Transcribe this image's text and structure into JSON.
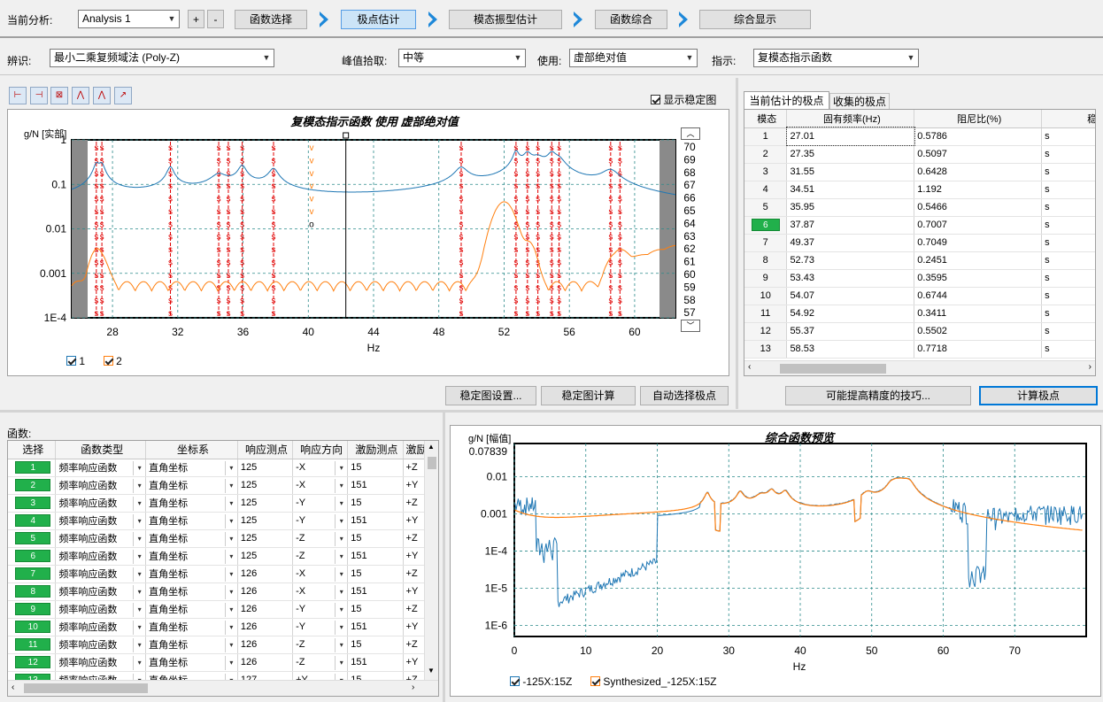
{
  "top": {
    "analysis_label": "当前分析:",
    "analysis_value": "Analysis 1",
    "plus": "+",
    "minus": "-",
    "steps": [
      "函数选择",
      "极点估计",
      "模态振型估计",
      "函数综合",
      "综合显示"
    ]
  },
  "options": {
    "ident_label": "辨识:",
    "ident_value": "最小二乘复频域法 (Poly-Z)",
    "peak_label": "峰值拾取:",
    "peak_value": "中等",
    "use_label": "使用:",
    "use_value": "虚部绝对值",
    "indicator_label": "指示:",
    "indicator_value": "复模态指示函数"
  },
  "stab": {
    "show_label": "显示稳定图",
    "title": "复模态指示函数 使用 虚部绝对值",
    "ylabel": "g/N [实部]",
    "xlabel": "Hz",
    "yticks": [
      "1",
      "0.1",
      "0.01",
      "0.001",
      "1E-4"
    ],
    "xticks": [
      "28",
      "32",
      "36",
      "40",
      "44",
      "48",
      "52",
      "56",
      "60"
    ],
    "orders": [
      "70",
      "69",
      "68",
      "67",
      "66",
      "65",
      "64",
      "63",
      "62",
      "61",
      "60",
      "59",
      "58",
      "57"
    ],
    "legend": [
      "1",
      "2"
    ],
    "buttons": [
      "稳定图设置...",
      "稳定图计算",
      "自动选择极点"
    ]
  },
  "poles": {
    "tabs": [
      "当前估计的极点",
      "收集的极点"
    ],
    "headers": [
      "模态",
      "固有频率(Hz)",
      "阻尼比(%)",
      "稳定类型"
    ],
    "rows": [
      [
        "1",
        "27.01",
        "0.5786",
        "s"
      ],
      [
        "2",
        "27.35",
        "0.5097",
        "s"
      ],
      [
        "3",
        "31.55",
        "0.6428",
        "s"
      ],
      [
        "4",
        "34.51",
        "1.192",
        "s"
      ],
      [
        "5",
        "35.95",
        "0.5466",
        "s"
      ],
      [
        "6",
        "37.87",
        "0.7007",
        "s"
      ],
      [
        "7",
        "49.37",
        "0.7049",
        "s"
      ],
      [
        "8",
        "52.73",
        "0.2451",
        "s"
      ],
      [
        "9",
        "53.43",
        "0.3595",
        "s"
      ],
      [
        "10",
        "54.07",
        "0.6744",
        "s"
      ],
      [
        "11",
        "54.92",
        "0.3411",
        "s"
      ],
      [
        "12",
        "55.37",
        "0.5502",
        "s"
      ],
      [
        "13",
        "58.53",
        "0.7718",
        "s"
      ]
    ],
    "tip_button": "可能提高精度的技巧...",
    "calc_button": "计算极点"
  },
  "functions": {
    "label": "函数:",
    "headers": [
      "选择",
      "函数类型",
      "坐标系",
      "响应测点",
      "响应方向",
      "激励测点",
      "激励方"
    ],
    "rows": [
      [
        "1",
        "频率响应函数",
        "直角坐标",
        "125",
        "-X",
        "15",
        "+Z"
      ],
      [
        "2",
        "频率响应函数",
        "直角坐标",
        "125",
        "-X",
        "151",
        "+Y"
      ],
      [
        "3",
        "频率响应函数",
        "直角坐标",
        "125",
        "-Y",
        "15",
        "+Z"
      ],
      [
        "4",
        "频率响应函数",
        "直角坐标",
        "125",
        "-Y",
        "151",
        "+Y"
      ],
      [
        "5",
        "频率响应函数",
        "直角坐标",
        "125",
        "-Z",
        "15",
        "+Z"
      ],
      [
        "6",
        "频率响应函数",
        "直角坐标",
        "125",
        "-Z",
        "151",
        "+Y"
      ],
      [
        "7",
        "频率响应函数",
        "直角坐标",
        "126",
        "-X",
        "15",
        "+Z"
      ],
      [
        "8",
        "频率响应函数",
        "直角坐标",
        "126",
        "-X",
        "151",
        "+Y"
      ],
      [
        "9",
        "频率响应函数",
        "直角坐标",
        "126",
        "-Y",
        "15",
        "+Z"
      ],
      [
        "10",
        "频率响应函数",
        "直角坐标",
        "126",
        "-Y",
        "151",
        "+Y"
      ],
      [
        "11",
        "频率响应函数",
        "直角坐标",
        "126",
        "-Z",
        "15",
        "+Z"
      ],
      [
        "12",
        "频率响应函数",
        "直角坐标",
        "126",
        "-Z",
        "151",
        "+Y"
      ],
      [
        "13",
        "频率响应函数",
        "直角坐标",
        "127",
        "+Y",
        "15",
        "+Z"
      ]
    ]
  },
  "synth": {
    "title": "综合函数预览",
    "ylabel": "g/N [幅值]",
    "ytop": "0.07839",
    "yticks": [
      "0.01",
      "0.001",
      "1E-4",
      "1E-5",
      "1E-6"
    ],
    "xticks": [
      "0",
      "10",
      "20",
      "30",
      "40",
      "50",
      "60",
      "70"
    ],
    "xlabel": "Hz",
    "legend": [
      "-125X:15Z",
      "Synthesized_-125X:15Z"
    ]
  },
  "colors": {
    "blue": "#1f77b4",
    "orange": "#ff7f0e",
    "pole_red": "#e00000",
    "selected_green": "#21b04b"
  },
  "chart_data": [
    {
      "type": "line",
      "title": "复模态指示函数 使用 虚部绝对值",
      "ylabel": "g/N [实部]",
      "xlabel": "Hz",
      "xlim": [
        25.5,
        62.5
      ],
      "ylim": [
        0.0001,
        1
      ],
      "yscale": "log",
      "series": [
        {
          "name": "1"
        },
        {
          "name": "2"
        }
      ],
      "stable_pole_freqs": [
        27.01,
        27.35,
        31.55,
        34.51,
        35.1,
        35.95,
        37.87,
        49.37,
        52.73,
        53.43,
        54.07,
        54.92,
        55.37,
        58.53,
        59.1
      ],
      "order_range": [
        57,
        70
      ]
    },
    {
      "type": "line",
      "title": "综合函数预览",
      "ylabel": "g/N [幅值]",
      "xlabel": "Hz",
      "xlim": [
        0,
        80
      ],
      "ylim": [
        5e-07,
        0.07839
      ],
      "yscale": "log",
      "series": [
        {
          "name": "-125X:15Z"
        },
        {
          "name": "Synthesized_-125X:15Z"
        }
      ]
    }
  ]
}
